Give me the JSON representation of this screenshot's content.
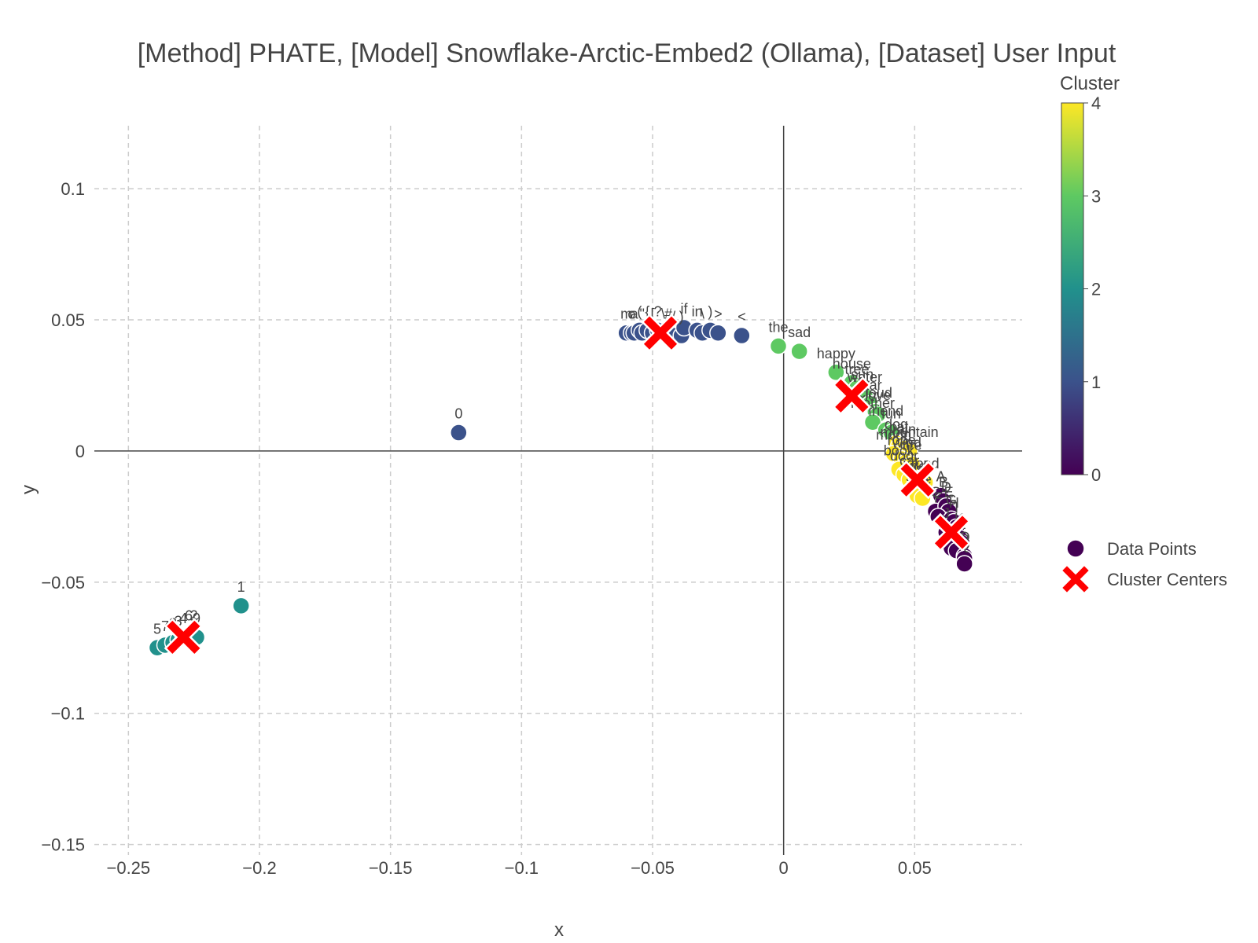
{
  "chart_data": {
    "type": "scatter",
    "title": "[Method] PHATE, [Model] Snowflake-Arctic-Embed2 (Ollama), [Dataset] User Input",
    "xlabel": "x",
    "ylabel": "y",
    "xlim": [
      -0.263,
      0.091
    ],
    "ylim": [
      -0.154,
      0.124
    ],
    "x_ticks": [
      -0.25,
      -0.2,
      -0.15,
      -0.1,
      -0.05,
      0,
      0.05
    ],
    "x_tick_labels": [
      "−0.25",
      "−0.2",
      "−0.15",
      "−0.1",
      "−0.05",
      "0",
      "0.05"
    ],
    "y_ticks": [
      0.1,
      0.05,
      0,
      -0.05,
      -0.1,
      -0.15
    ],
    "y_tick_labels": [
      "0.1",
      "0.05",
      "0",
      "−0.05",
      "−0.1",
      "−0.15"
    ],
    "grid": true,
    "colorbar": {
      "title": "Cluster",
      "min": 0,
      "max": 4,
      "ticks": [
        0,
        1,
        2,
        3,
        4
      ],
      "tick_labels": [
        "0",
        "1",
        "2",
        "3",
        "4"
      ],
      "colorscale": [
        "#440154",
        "#3b528b",
        "#21918c",
        "#5ec962",
        "#fde725"
      ]
    },
    "legend": {
      "placement": "right",
      "entries": [
        {
          "name": "Data Points",
          "marker": "circle",
          "color": "#440154"
        },
        {
          "name": "Cluster Centers",
          "marker": "x",
          "color": "#ff0000"
        }
      ]
    },
    "points": [
      {
        "x": -0.124,
        "y": 0.007,
        "cluster": 1,
        "label": "0"
      },
      {
        "x": -0.207,
        "y": -0.059,
        "cluster": 2,
        "label": "1"
      },
      {
        "x": -0.239,
        "y": -0.075,
        "cluster": 2,
        "label": "5"
      },
      {
        "x": -0.236,
        "y": -0.074,
        "cluster": 2,
        "label": "7"
      },
      {
        "x": -0.233,
        "y": -0.073,
        "cluster": 2,
        "label": "8"
      },
      {
        "x": -0.231,
        "y": -0.072,
        "cluster": 2,
        "label": "3"
      },
      {
        "x": -0.229,
        "y": -0.071,
        "cluster": 2,
        "label": "4"
      },
      {
        "x": -0.227,
        "y": -0.07,
        "cluster": 2,
        "label": "6"
      },
      {
        "x": -0.225,
        "y": -0.07,
        "cluster": 2,
        "label": "2"
      },
      {
        "x": -0.224,
        "y": -0.071,
        "cluster": 2,
        "label": "9"
      },
      {
        "x": -0.06,
        "y": 0.045,
        "cluster": 1,
        "label": "m"
      },
      {
        "x": -0.058,
        "y": 0.045,
        "cluster": 1,
        "label": "o"
      },
      {
        "x": -0.057,
        "y": 0.045,
        "cluster": 1,
        "label": "a"
      },
      {
        "x": -0.055,
        "y": 0.046,
        "cluster": 1,
        "label": "("
      },
      {
        "x": -0.054,
        "y": 0.045,
        "cluster": 1,
        "label": "\""
      },
      {
        "x": -0.052,
        "y": 0.046,
        "cluster": 1,
        "label": "{"
      },
      {
        "x": -0.05,
        "y": 0.045,
        "cluster": 1,
        "label": "["
      },
      {
        "x": -0.048,
        "y": 0.046,
        "cluster": 1,
        "label": "?"
      },
      {
        "x": -0.046,
        "y": 0.045,
        "cluster": 1,
        "label": "\\"
      },
      {
        "x": -0.044,
        "y": 0.045,
        "cluster": 1,
        "label": "#"
      },
      {
        "x": -0.042,
        "y": 0.044,
        "cluster": 1,
        "label": "/"
      },
      {
        "x": -0.039,
        "y": 0.044,
        "cluster": 1,
        "label": ")"
      },
      {
        "x": -0.038,
        "y": 0.047,
        "cluster": 1,
        "label": "if"
      },
      {
        "x": -0.033,
        "y": 0.046,
        "cluster": 1,
        "label": "in"
      },
      {
        "x": -0.031,
        "y": 0.045,
        "cluster": 1,
        "label": "\\"
      },
      {
        "x": -0.028,
        "y": 0.046,
        "cluster": 1,
        "label": ")"
      },
      {
        "x": -0.025,
        "y": 0.045,
        "cluster": 1,
        "label": ">"
      },
      {
        "x": -0.016,
        "y": 0.044,
        "cluster": 1,
        "label": "<"
      },
      {
        "x": -0.002,
        "y": 0.04,
        "cluster": 3,
        "label": "the"
      },
      {
        "x": 0.006,
        "y": 0.038,
        "cluster": 3,
        "label": "sad"
      },
      {
        "x": 0.02,
        "y": 0.03,
        "cluster": 3,
        "label": "happy"
      },
      {
        "x": 0.026,
        "y": 0.026,
        "cluster": 3,
        "label": "house"
      },
      {
        "x": 0.028,
        "y": 0.024,
        "cluster": 3,
        "label": "tree"
      },
      {
        "x": 0.03,
        "y": 0.022,
        "cluster": 3,
        "label": "sun"
      },
      {
        "x": 0.031,
        "y": 0.021,
        "cluster": 3,
        "label": "water"
      },
      {
        "x": 0.033,
        "y": 0.018,
        "cluster": 3,
        "label": "star"
      },
      {
        "x": 0.035,
        "y": 0.015,
        "cluster": 3,
        "label": "cloud"
      },
      {
        "x": 0.036,
        "y": 0.014,
        "cluster": 3,
        "label": "love"
      },
      {
        "x": 0.034,
        "y": 0.011,
        "cluster": 3,
        "label": "mother"
      },
      {
        "x": 0.039,
        "y": 0.008,
        "cluster": 3,
        "label": "friend"
      },
      {
        "x": 0.041,
        "y": 0.007,
        "cluster": 3,
        "label": "fun"
      },
      {
        "x": 0.043,
        "y": 0.003,
        "cluster": 4,
        "label": "dog"
      },
      {
        "x": 0.044,
        "y": 0.002,
        "cluster": 4,
        "label": "cat"
      },
      {
        "x": 0.046,
        "y": 0.001,
        "cluster": 4,
        "label": "rain"
      },
      {
        "x": 0.048,
        "y": 0.0,
        "cluster": 4,
        "label": "mountain"
      },
      {
        "x": 0.042,
        "y": -0.001,
        "cluster": 4,
        "label": "moon"
      },
      {
        "x": 0.045,
        "y": -0.003,
        "cluster": 4,
        "label": "rope"
      },
      {
        "x": 0.047,
        "y": -0.004,
        "cluster": 4,
        "label": "wind"
      },
      {
        "x": 0.049,
        "y": -0.005,
        "cluster": 4,
        "label": "fire"
      },
      {
        "x": 0.044,
        "y": -0.007,
        "cluster": 4,
        "label": "book"
      },
      {
        "x": 0.046,
        "y": -0.009,
        "cluster": 4,
        "label": "door"
      },
      {
        "x": 0.048,
        "y": -0.011,
        "cluster": 4,
        "label": "car"
      },
      {
        "x": 0.05,
        "y": -0.013,
        "cluster": 4,
        "label": "bird"
      },
      {
        "x": 0.052,
        "y": -0.014,
        "cluster": 4,
        "label": "fish"
      },
      {
        "x": 0.054,
        "y": -0.012,
        "cluster": 4,
        "label": "road"
      },
      {
        "x": 0.051,
        "y": -0.017,
        "cluster": 4,
        "label": "sea"
      },
      {
        "x": 0.053,
        "y": -0.018,
        "cluster": 4,
        "label": "ice"
      },
      {
        "x": 0.06,
        "y": -0.017,
        "cluster": 0,
        "label": "A"
      },
      {
        "x": 0.061,
        "y": -0.019,
        "cluster": 0,
        "label": "B"
      },
      {
        "x": 0.058,
        "y": -0.023,
        "cluster": 0,
        "label": "C"
      },
      {
        "x": 0.062,
        "y": -0.021,
        "cluster": 0,
        "label": "D"
      },
      {
        "x": 0.063,
        "y": -0.023,
        "cluster": 0,
        "label": "E"
      },
      {
        "x": 0.059,
        "y": -0.025,
        "cluster": 0,
        "label": "F"
      },
      {
        "x": 0.064,
        "y": -0.026,
        "cluster": 0,
        "label": "G"
      },
      {
        "x": 0.065,
        "y": -0.027,
        "cluster": 0,
        "label": "H"
      },
      {
        "x": 0.066,
        "y": -0.029,
        "cluster": 0,
        "label": "I"
      },
      {
        "x": 0.062,
        "y": -0.031,
        "cluster": 0,
        "label": "J"
      },
      {
        "x": 0.067,
        "y": -0.033,
        "cluster": 0,
        "label": "K"
      },
      {
        "x": 0.068,
        "y": -0.035,
        "cluster": 0,
        "label": "L"
      },
      {
        "x": 0.064,
        "y": -0.037,
        "cluster": 0,
        "label": "M"
      },
      {
        "x": 0.066,
        "y": -0.038,
        "cluster": 0,
        "label": "N"
      },
      {
        "x": 0.069,
        "y": -0.04,
        "cluster": 0,
        "label": "O"
      },
      {
        "x": 0.069,
        "y": -0.041,
        "cluster": 0,
        "label": "P"
      },
      {
        "x": 0.069,
        "y": -0.043,
        "cluster": 0,
        "label": "Q"
      }
    ],
    "centers": [
      {
        "x": -0.047,
        "y": 0.045,
        "cluster": 1
      },
      {
        "x": -0.229,
        "y": -0.071,
        "cluster": 2
      },
      {
        "x": 0.026,
        "y": 0.021,
        "cluster": 3
      },
      {
        "x": 0.051,
        "y": -0.011,
        "cluster": 4
      },
      {
        "x": 0.064,
        "y": -0.031,
        "cluster": 0
      }
    ]
  }
}
